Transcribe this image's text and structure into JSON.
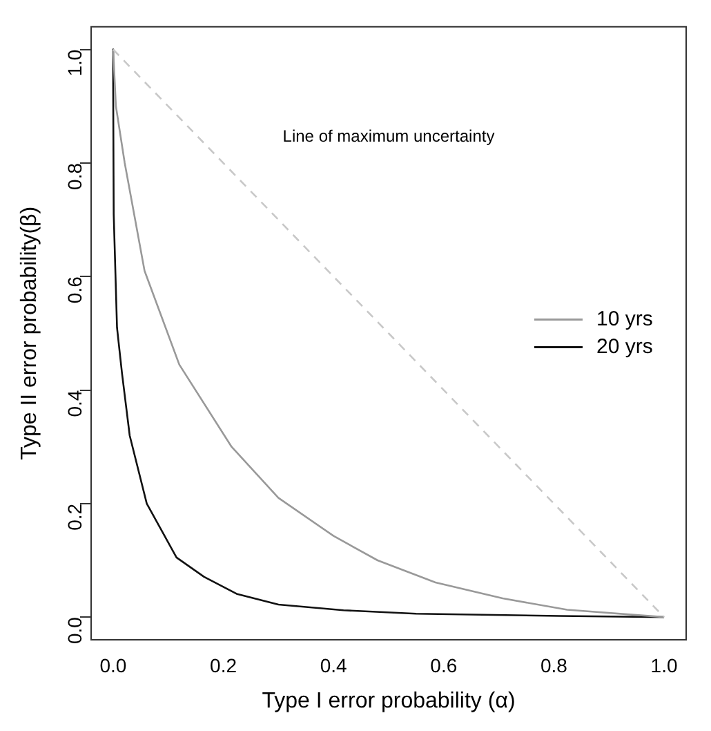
{
  "chart_data": {
    "type": "line",
    "xlabel": "Type I error probability (α)",
    "ylabel": "Type II error probability(β)",
    "xlim": [
      -0.04,
      1.04
    ],
    "ylim": [
      -0.04,
      1.04
    ],
    "xticks": [
      {
        "value": 0,
        "label": "0.0"
      },
      {
        "value": 0.2,
        "label": "0.2"
      },
      {
        "value": 0.4,
        "label": "0.4"
      },
      {
        "value": 0.6,
        "label": "0.6"
      },
      {
        "value": 0.8,
        "label": "0.8"
      },
      {
        "value": 1,
        "label": "1.0"
      }
    ],
    "yticks": [
      {
        "value": 0,
        "label": "0.0"
      },
      {
        "value": 0.2,
        "label": "0.2"
      },
      {
        "value": 0.4,
        "label": "0.4"
      },
      {
        "value": 0.6,
        "label": "0.6"
      },
      {
        "value": 0.8,
        "label": "0.8"
      },
      {
        "value": 1,
        "label": "1.0"
      }
    ],
    "grid": false,
    "legend": "right",
    "marker": "none",
    "annotations": [
      "Line of maximum uncertainty"
    ],
    "series": [
      {
        "color": "#c8c8c8",
        "line_style": "dashed",
        "x": [
          0,
          1
        ],
        "values": [
          1,
          0
        ]
      },
      {
        "name": "10 yrs",
        "color": "#999999",
        "line_style": "solid",
        "x": [
          0,
          0.005,
          0.021,
          0.057,
          0.12,
          0.215,
          0.3,
          0.4,
          0.48,
          0.585,
          0.707,
          0.824,
          1
        ],
        "values": [
          1,
          0.9,
          0.8,
          0.61,
          0.445,
          0.3,
          0.21,
          0.143,
          0.1,
          0.061,
          0.033,
          0.013,
          0
        ]
      },
      {
        "name": "20 yrs",
        "color": "#111111",
        "line_style": "solid",
        "x": [
          0,
          0,
          0.001,
          0.007,
          0.016,
          0.03,
          0.061,
          0.115,
          0.165,
          0.224,
          0.3,
          0.418,
          0.55,
          0.81,
          1
        ],
        "values": [
          1,
          0.94,
          0.71,
          0.51,
          0.43,
          0.32,
          0.2,
          0.105,
          0.071,
          0.041,
          0.022,
          0.012,
          0.006,
          0.002,
          0
        ]
      }
    ]
  }
}
